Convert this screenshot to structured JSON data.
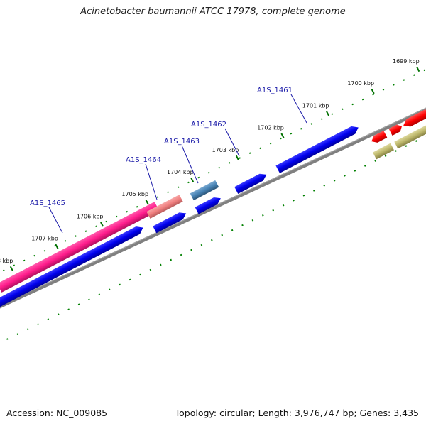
{
  "title": "Acinetobacter baumannii ATCC 17978, complete genome",
  "footer": {
    "accession": "Accession: NC_009085",
    "summary": "Topology: circular; Length: 3,976,747 bp; Genes: 3,435"
  },
  "ticks": [
    {
      "label": "1699 kbp",
      "kbp": 1699
    },
    {
      "label": "1700 kbp",
      "kbp": 1700
    },
    {
      "label": "1701 kbp",
      "kbp": 1701
    },
    {
      "label": "1702 kbp",
      "kbp": 1702
    },
    {
      "label": "1703 kbp",
      "kbp": 1703
    },
    {
      "label": "1704 kbp",
      "kbp": 1704
    },
    {
      "label": "1705 kbp",
      "kbp": 1705
    },
    {
      "label": "1706 kbp",
      "kbp": 1706
    },
    {
      "label": "1707 kbp",
      "kbp": 1707
    },
    {
      "label": "1708 kbp",
      "kbp": 1708
    }
  ],
  "gene_labels": [
    {
      "label": "A1S_1461"
    },
    {
      "label": "A1S_1462"
    },
    {
      "label": "A1S_1463"
    },
    {
      "label": "A1S_1464"
    },
    {
      "label": "A1S_1465"
    }
  ],
  "colors": {
    "cds": "#0000ee",
    "highlight_pink": "#ff1c8c",
    "pale_pink": "#f08080",
    "steel_blue": "#4682b4",
    "red": "#ff0000",
    "khaki": "#bdb76b",
    "backbone": "#808080",
    "ticks": "#008000"
  }
}
